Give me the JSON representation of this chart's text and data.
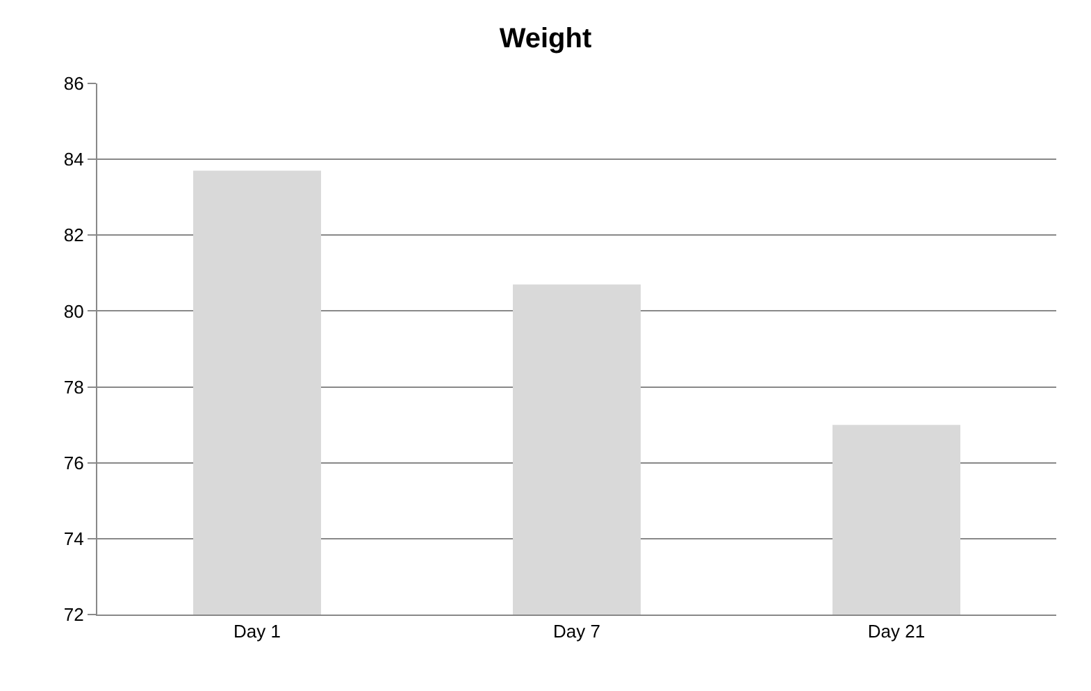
{
  "chart_data": {
    "type": "bar",
    "title": "Weight",
    "categories": [
      "Day 1",
      "Day 7",
      "Day 21"
    ],
    "values": [
      83.7,
      80.7,
      77.0
    ],
    "color": "#d9d9d9",
    "ylim": [
      72,
      86
    ],
    "yticks": [
      72,
      74,
      76,
      78,
      80,
      82,
      84,
      86
    ],
    "grid": "y",
    "legend": false
  }
}
